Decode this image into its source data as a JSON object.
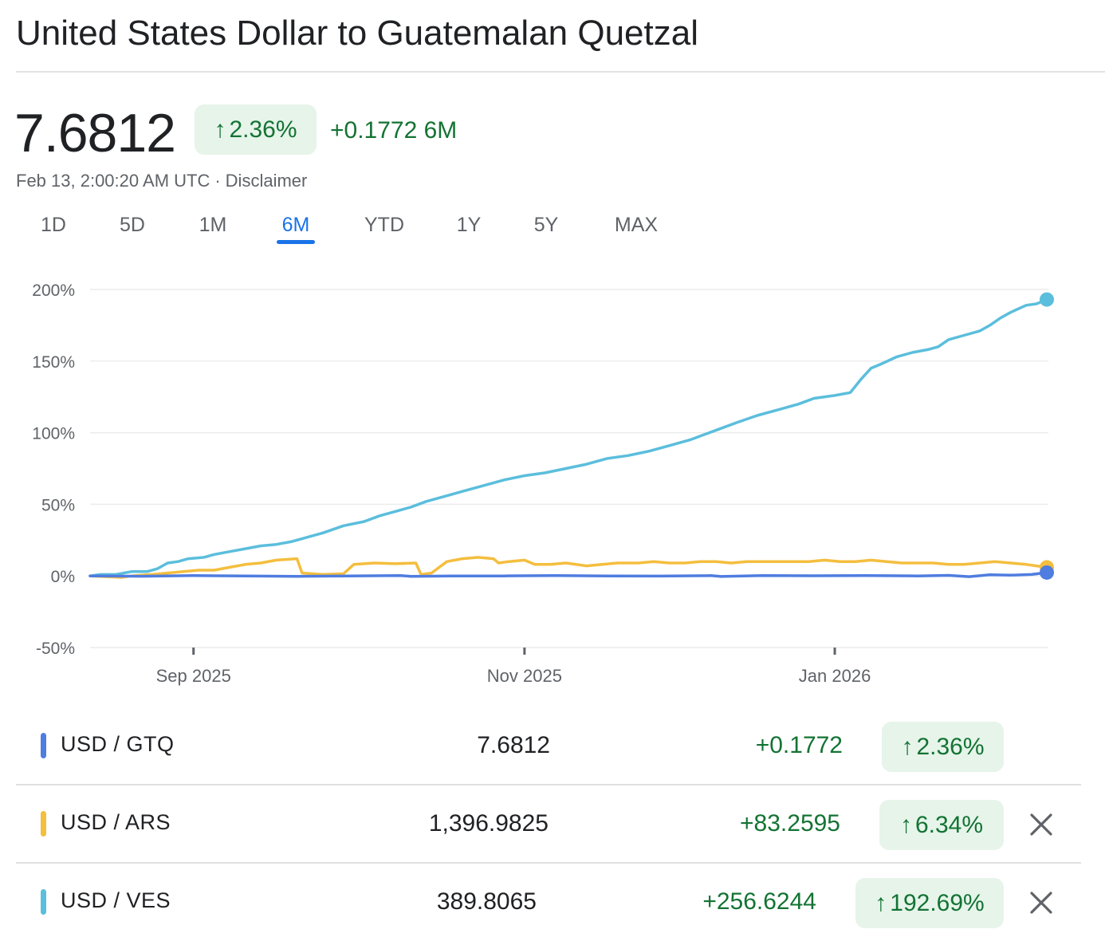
{
  "title": "United States Dollar to Guatemalan Quetzal",
  "price": "7.6812",
  "change_pct": "2.36%",
  "change_abs": "+0.1772",
  "change_period": "6M",
  "timestamp": "Feb 13, 2:00:20 AM UTC",
  "separator": "·",
  "disclaimer": "Disclaimer",
  "arrow_glyph": "↑",
  "close_glyph": "✕",
  "ranges": [
    "1D",
    "5D",
    "1M",
    "6M",
    "YTD",
    "1Y",
    "5Y",
    "MAX"
  ],
  "active_range": "6M",
  "colors": {
    "gtq": "#4f7de0",
    "ars": "#f4be3e",
    "ves": "#5bbedc",
    "positive": "#137333",
    "chip_bg": "#e6f4ea"
  },
  "chart_data": {
    "type": "line",
    "y_unit": "%",
    "ylim": [
      -50,
      200
    ],
    "y_ticks": [
      200,
      150,
      100,
      50,
      0,
      -50
    ],
    "y_tick_labels": [
      "200%",
      "150%",
      "100%",
      "50%",
      "0%",
      "-50%"
    ],
    "x_range_days": [
      0,
      185
    ],
    "x_ticks": [
      {
        "day": 20,
        "label": "Sep 2025"
      },
      {
        "day": 84,
        "label": "Nov 2025"
      },
      {
        "day": 144,
        "label": "Jan 2026"
      }
    ],
    "series": [
      {
        "name": "USD / VES",
        "color": "#5bbedc",
        "points": [
          [
            0,
            0
          ],
          [
            2,
            1
          ],
          [
            5,
            1
          ],
          [
            8,
            3
          ],
          [
            11,
            3
          ],
          [
            13,
            5
          ],
          [
            15,
            9
          ],
          [
            17,
            10
          ],
          [
            19,
            12
          ],
          [
            22,
            13
          ],
          [
            24,
            15
          ],
          [
            27,
            17
          ],
          [
            30,
            19
          ],
          [
            33,
            21
          ],
          [
            36,
            22
          ],
          [
            39,
            24
          ],
          [
            42,
            27
          ],
          [
            45,
            30
          ],
          [
            49,
            35
          ],
          [
            53,
            38
          ],
          [
            56,
            42
          ],
          [
            59,
            45
          ],
          [
            62,
            48
          ],
          [
            65,
            52
          ],
          [
            68,
            55
          ],
          [
            72,
            59
          ],
          [
            76,
            63
          ],
          [
            80,
            67
          ],
          [
            84,
            70
          ],
          [
            88,
            72
          ],
          [
            92,
            75
          ],
          [
            96,
            78
          ],
          [
            100,
            82
          ],
          [
            104,
            84
          ],
          [
            108,
            87
          ],
          [
            112,
            91
          ],
          [
            116,
            95
          ],
          [
            119,
            99
          ],
          [
            122,
            103
          ],
          [
            125,
            107
          ],
          [
            129,
            112
          ],
          [
            133,
            116
          ],
          [
            137,
            120
          ],
          [
            140,
            124
          ],
          [
            144,
            126
          ],
          [
            147,
            128
          ],
          [
            149,
            137
          ],
          [
            151,
            145
          ],
          [
            153,
            148
          ],
          [
            156,
            153
          ],
          [
            159,
            156
          ],
          [
            162,
            158
          ],
          [
            164,
            160
          ],
          [
            166,
            165
          ],
          [
            169,
            168
          ],
          [
            172,
            171
          ],
          [
            174,
            175
          ],
          [
            176,
            180
          ],
          [
            178,
            184
          ],
          [
            181,
            189
          ],
          [
            183,
            190
          ],
          [
            185,
            193
          ]
        ]
      },
      {
        "name": "USD / ARS",
        "color": "#f4be3e",
        "points": [
          [
            0,
            0
          ],
          [
            3,
            -0.5
          ],
          [
            6,
            -1
          ],
          [
            8,
            0
          ],
          [
            10,
            0.5
          ],
          [
            12,
            1
          ],
          [
            15,
            2
          ],
          [
            18,
            3
          ],
          [
            21,
            4
          ],
          [
            24,
            4
          ],
          [
            27,
            6
          ],
          [
            30,
            8
          ],
          [
            33,
            9
          ],
          [
            36,
            11
          ],
          [
            40,
            12
          ],
          [
            41,
            2
          ],
          [
            45,
            1
          ],
          [
            49,
            1.5
          ],
          [
            51,
            8
          ],
          [
            55,
            9
          ],
          [
            59,
            8.5
          ],
          [
            63,
            9
          ],
          [
            64,
            1
          ],
          [
            66,
            2
          ],
          [
            69,
            10
          ],
          [
            72,
            12
          ],
          [
            75,
            13
          ],
          [
            78,
            12
          ],
          [
            79,
            9
          ],
          [
            81,
            10
          ],
          [
            84,
            11
          ],
          [
            86,
            8
          ],
          [
            89,
            8
          ],
          [
            92,
            9
          ],
          [
            96,
            7
          ],
          [
            99,
            8
          ],
          [
            102,
            9
          ],
          [
            106,
            9
          ],
          [
            109,
            10
          ],
          [
            112,
            9
          ],
          [
            115,
            9
          ],
          [
            118,
            10
          ],
          [
            121,
            10
          ],
          [
            124,
            9
          ],
          [
            127,
            10
          ],
          [
            130,
            10
          ],
          [
            133,
            10
          ],
          [
            136,
            10
          ],
          [
            139,
            10
          ],
          [
            142,
            11
          ],
          [
            145,
            10
          ],
          [
            148,
            10
          ],
          [
            151,
            11
          ],
          [
            154,
            10
          ],
          [
            157,
            9
          ],
          [
            160,
            9
          ],
          [
            163,
            9
          ],
          [
            166,
            8
          ],
          [
            169,
            8
          ],
          [
            172,
            9
          ],
          [
            175,
            10
          ],
          [
            178,
            9
          ],
          [
            181,
            8
          ],
          [
            183,
            7
          ],
          [
            185,
            6
          ]
        ]
      },
      {
        "name": "USD / GTQ",
        "color": "#4f7de0",
        "points": [
          [
            0,
            0
          ],
          [
            10,
            -0.2
          ],
          [
            20,
            0.2
          ],
          [
            30,
            0
          ],
          [
            40,
            -0.3
          ],
          [
            50,
            0
          ],
          [
            60,
            0.3
          ],
          [
            62,
            -0.3
          ],
          [
            70,
            0
          ],
          [
            80,
            0
          ],
          [
            90,
            0.2
          ],
          [
            100,
            0
          ],
          [
            110,
            -0.1
          ],
          [
            120,
            0.2
          ],
          [
            122,
            -0.4
          ],
          [
            130,
            0.2
          ],
          [
            140,
            0.1
          ],
          [
            150,
            0.3
          ],
          [
            160,
            0
          ],
          [
            166,
            0.4
          ],
          [
            170,
            -0.5
          ],
          [
            174,
            0.8
          ],
          [
            178,
            0.5
          ],
          [
            182,
            1
          ],
          [
            185,
            2.36
          ]
        ]
      }
    ]
  },
  "rows": [
    {
      "pair": "USD / GTQ",
      "value": "7.6812",
      "change": "+0.1772",
      "pct": "2.36%",
      "removable": false
    },
    {
      "pair": "USD / ARS",
      "value": "1,396.9825",
      "change": "+83.2595",
      "pct": "6.34%",
      "removable": true
    },
    {
      "pair": "USD / VES",
      "value": "389.8065",
      "change": "+256.6244",
      "pct": "192.69%",
      "removable": true
    }
  ]
}
